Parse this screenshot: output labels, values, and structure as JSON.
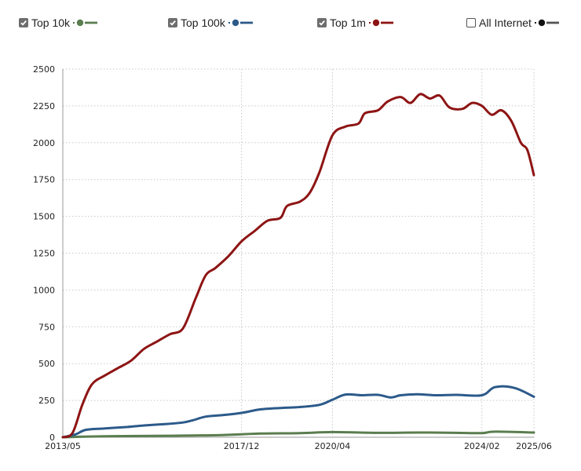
{
  "legend": [
    {
      "label": "Top 10k",
      "checked": true,
      "color": "#5a7d4e"
    },
    {
      "label": "Top 100k",
      "checked": true,
      "color": "#2c5a8a"
    },
    {
      "label": "Top 1m",
      "checked": true,
      "color": "#8e1414"
    },
    {
      "label": "All Internet",
      "checked": false,
      "color": "#222222"
    }
  ],
  "chart_data": {
    "type": "line",
    "title": "",
    "xlabel": "",
    "ylabel": "",
    "x_tick_labels": [
      "2013/05",
      "2017/12",
      "2020/04",
      "2024/02",
      "2025/06"
    ],
    "y_ticks": [
      0,
      250,
      500,
      750,
      1000,
      1250,
      1500,
      1750,
      2000,
      2250,
      2500
    ],
    "ylim": [
      0,
      2500
    ],
    "xlim": [
      "2013/05",
      "2025/06"
    ],
    "grid": true,
    "legend_position": "top",
    "series": [
      {
        "name": "Top 10k",
        "color": "#5a7d4e",
        "points": [
          [
            "2013/05",
            0
          ],
          [
            "2014/01",
            5
          ],
          [
            "2015/01",
            8
          ],
          [
            "2016/01",
            10
          ],
          [
            "2017/06",
            15
          ],
          [
            "2018/06",
            25
          ],
          [
            "2019/06",
            28
          ],
          [
            "2020/04",
            35
          ],
          [
            "2021/06",
            30
          ],
          [
            "2022/06",
            32
          ],
          [
            "2023/06",
            30
          ],
          [
            "2024/02",
            28
          ],
          [
            "2024/06",
            38
          ],
          [
            "2025/06",
            32
          ]
        ]
      },
      {
        "name": "Top 100k",
        "color": "#2c5a8a",
        "points": [
          [
            "2013/05",
            0
          ],
          [
            "2013/09",
            20
          ],
          [
            "2013/12",
            50
          ],
          [
            "2014/06",
            60
          ],
          [
            "2015/01",
            70
          ],
          [
            "2015/06",
            80
          ],
          [
            "2016/01",
            90
          ],
          [
            "2016/06",
            100
          ],
          [
            "2016/09",
            115
          ],
          [
            "2017/01",
            140
          ],
          [
            "2017/06",
            150
          ],
          [
            "2017/12",
            165
          ],
          [
            "2018/06",
            190
          ],
          [
            "2019/01",
            200
          ],
          [
            "2019/06",
            205
          ],
          [
            "2019/12",
            220
          ],
          [
            "2020/04",
            255
          ],
          [
            "2020/08",
            290
          ],
          [
            "2021/01",
            285
          ],
          [
            "2021/06",
            288
          ],
          [
            "2021/10",
            270
          ],
          [
            "2022/01",
            285
          ],
          [
            "2022/06",
            292
          ],
          [
            "2022/12",
            285
          ],
          [
            "2023/06",
            288
          ],
          [
            "2024/02",
            285
          ],
          [
            "2024/06",
            340
          ],
          [
            "2024/12",
            335
          ],
          [
            "2025/06",
            275
          ]
        ]
      },
      {
        "name": "Top 1m",
        "color": "#8e1414",
        "points": [
          [
            "2013/05",
            0
          ],
          [
            "2013/08",
            30
          ],
          [
            "2013/11",
            220
          ],
          [
            "2014/02",
            360
          ],
          [
            "2014/06",
            420
          ],
          [
            "2014/10",
            470
          ],
          [
            "2015/02",
            520
          ],
          [
            "2015/06",
            600
          ],
          [
            "2015/10",
            650
          ],
          [
            "2016/02",
            700
          ],
          [
            "2016/06",
            740
          ],
          [
            "2016/10",
            950
          ],
          [
            "2017/01",
            1100
          ],
          [
            "2017/04",
            1150
          ],
          [
            "2017/08",
            1230
          ],
          [
            "2017/12",
            1330
          ],
          [
            "2018/04",
            1400
          ],
          [
            "2018/08",
            1470
          ],
          [
            "2018/12",
            1490
          ],
          [
            "2019/02",
            1570
          ],
          [
            "2019/06",
            1600
          ],
          [
            "2019/09",
            1660
          ],
          [
            "2019/12",
            1800
          ],
          [
            "2020/04",
            2050
          ],
          [
            "2020/08",
            2110
          ],
          [
            "2020/12",
            2130
          ],
          [
            "2021/02",
            2200
          ],
          [
            "2021/06",
            2220
          ],
          [
            "2021/09",
            2280
          ],
          [
            "2022/01",
            2310
          ],
          [
            "2022/04",
            2270
          ],
          [
            "2022/07",
            2330
          ],
          [
            "2022/10",
            2300
          ],
          [
            "2023/01",
            2320
          ],
          [
            "2023/04",
            2240
          ],
          [
            "2023/08",
            2230
          ],
          [
            "2023/11",
            2270
          ],
          [
            "2024/02",
            2250
          ],
          [
            "2024/05",
            2190
          ],
          [
            "2024/08",
            2220
          ],
          [
            "2024/11",
            2150
          ],
          [
            "2025/02",
            2000
          ],
          [
            "2025/04",
            1950
          ],
          [
            "2025/06",
            1780
          ]
        ]
      }
    ]
  }
}
